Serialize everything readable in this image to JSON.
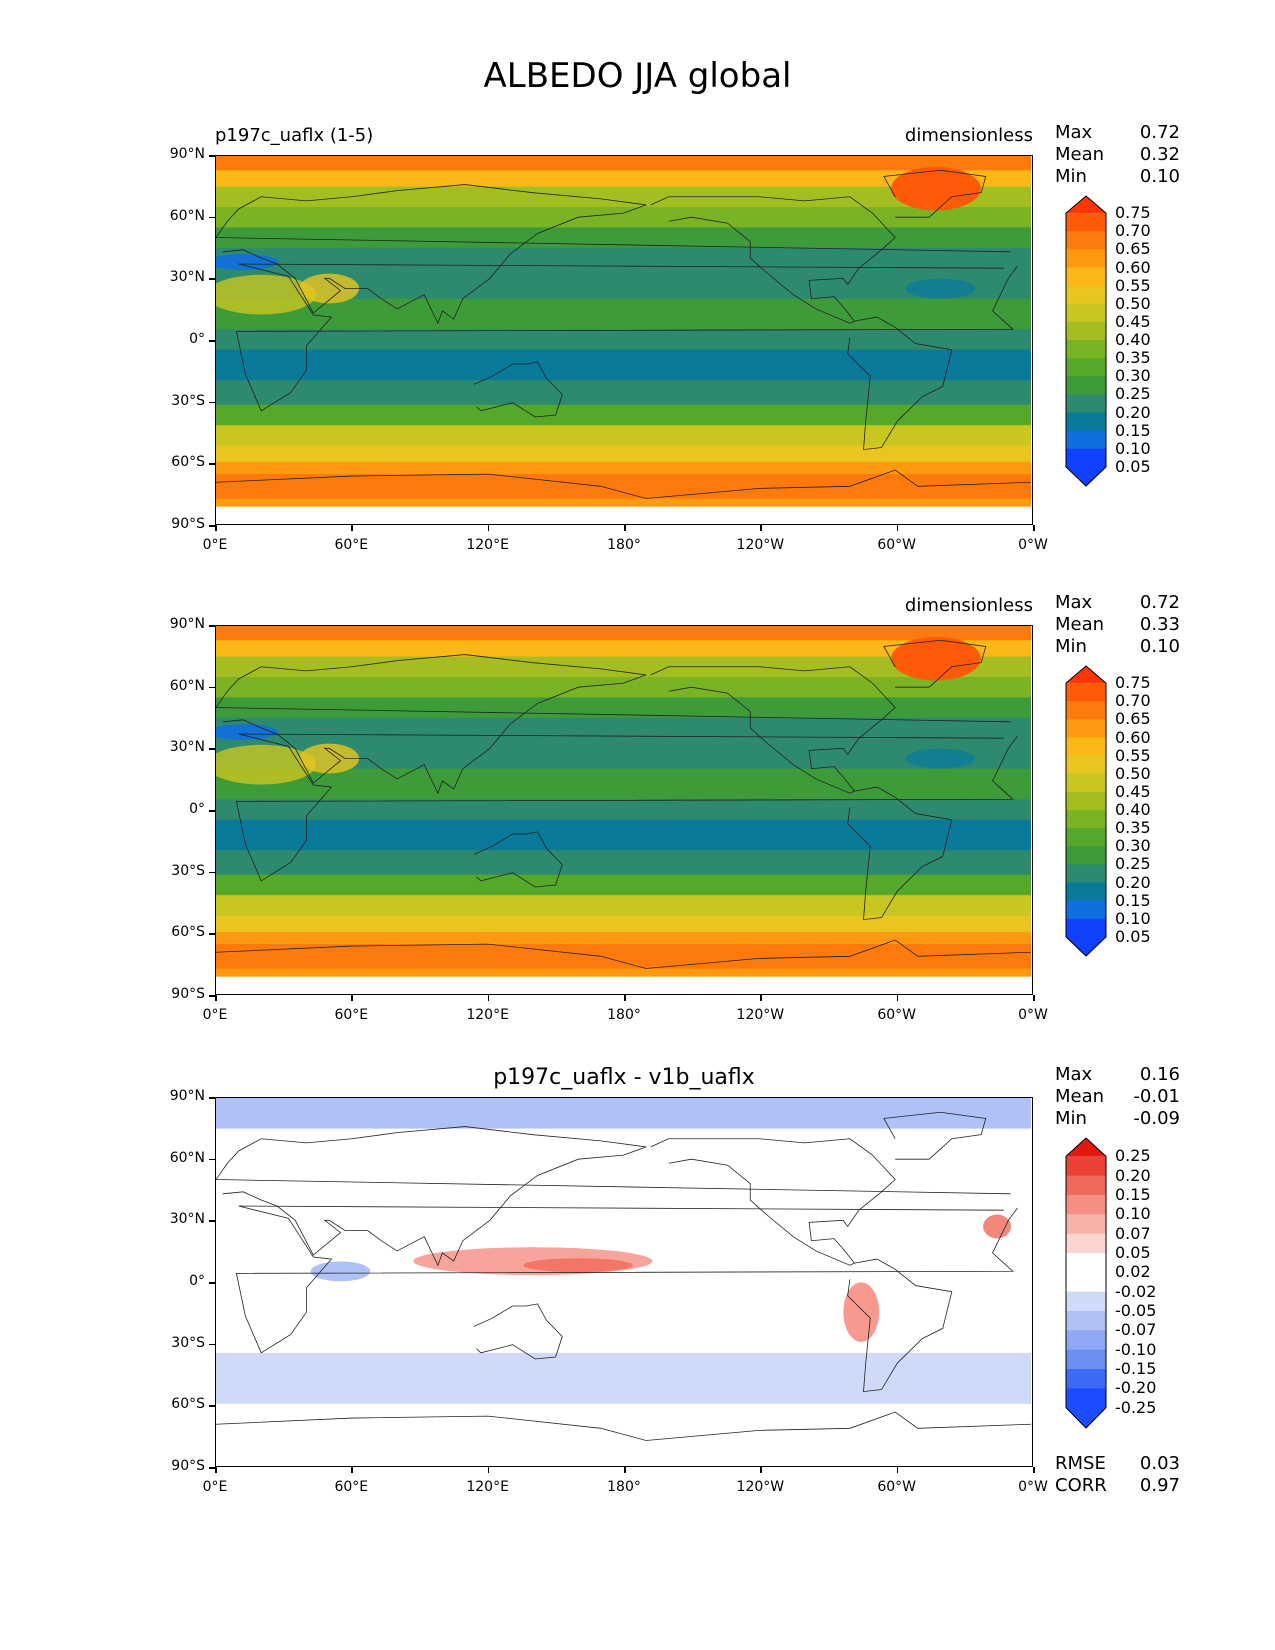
{
  "figure": {
    "title": "ALBEDO JJA global"
  },
  "axes": {
    "y_ticks": [
      "90°N",
      "60°N",
      "30°N",
      "0°",
      "30°S",
      "60°S",
      "90°S"
    ],
    "x_ticks": [
      "0°E",
      "60°E",
      "120°E",
      "180°",
      "120°W",
      "60°W",
      "0°W"
    ]
  },
  "panels": [
    {
      "title": "p197c_uaflx (1-5)",
      "units": "dimensionless",
      "stats": {
        "max_label": "Max",
        "max": "0.72",
        "mean_label": "Mean",
        "mean": "0.32",
        "min_label": "Min",
        "min": "0.10"
      },
      "colorbar": [
        "0.75",
        "0.70",
        "0.65",
        "0.60",
        "0.55",
        "0.50",
        "0.45",
        "0.40",
        "0.35",
        "0.30",
        "0.25",
        "0.20",
        "0.15",
        "0.10",
        "0.05"
      ],
      "map_kind": "absolute"
    },
    {
      "title": "",
      "units": "dimensionless",
      "stats": {
        "max_label": "Max",
        "max": "0.72",
        "mean_label": "Mean",
        "mean": "0.33",
        "min_label": "Min",
        "min": "0.10"
      },
      "colorbar": [
        "0.75",
        "0.70",
        "0.65",
        "0.60",
        "0.55",
        "0.50",
        "0.45",
        "0.40",
        "0.35",
        "0.30",
        "0.25",
        "0.20",
        "0.15",
        "0.10",
        "0.05"
      ],
      "map_kind": "absolute"
    },
    {
      "title": "p197c_uaflx - v1b_uaflx",
      "units": "",
      "stats": {
        "max_label": "Max",
        "max": "0.16",
        "mean_label": "Mean",
        "mean": "-0.01",
        "min_label": "Min",
        "min": "-0.09"
      },
      "colorbar": [
        "0.25",
        "0.20",
        "0.15",
        "0.10",
        "0.07",
        "0.05",
        "0.02",
        "-0.02",
        "-0.05",
        "-0.07",
        "-0.10",
        "-0.15",
        "-0.20",
        "-0.25"
      ],
      "map_kind": "difference",
      "metrics": {
        "rmse_label": "RMSE",
        "rmse": "0.03",
        "corr_label": "CORR",
        "corr": "0.97"
      }
    }
  ],
  "colors": {
    "absolute_scale": [
      "#1041ff",
      "#0f6ee0",
      "#0a7a9a",
      "#2e8a6e",
      "#3d9b3a",
      "#55a82a",
      "#7ab425",
      "#a5bd20",
      "#c8c620",
      "#e8c51f",
      "#fbb816",
      "#ff9a10",
      "#ff7a0c",
      "#ff5a08",
      "#ff3505"
    ],
    "difference_scale": [
      "#1b4cff",
      "#3e6bf5",
      "#6a8ef2",
      "#8da8f4",
      "#afc1f7",
      "#cfdaf9",
      "#ffffff",
      "#ffffff",
      "#fcd5d0",
      "#f8b2a9",
      "#f58f83",
      "#f0695b",
      "#ea4236",
      "#e0180f"
    ]
  }
}
